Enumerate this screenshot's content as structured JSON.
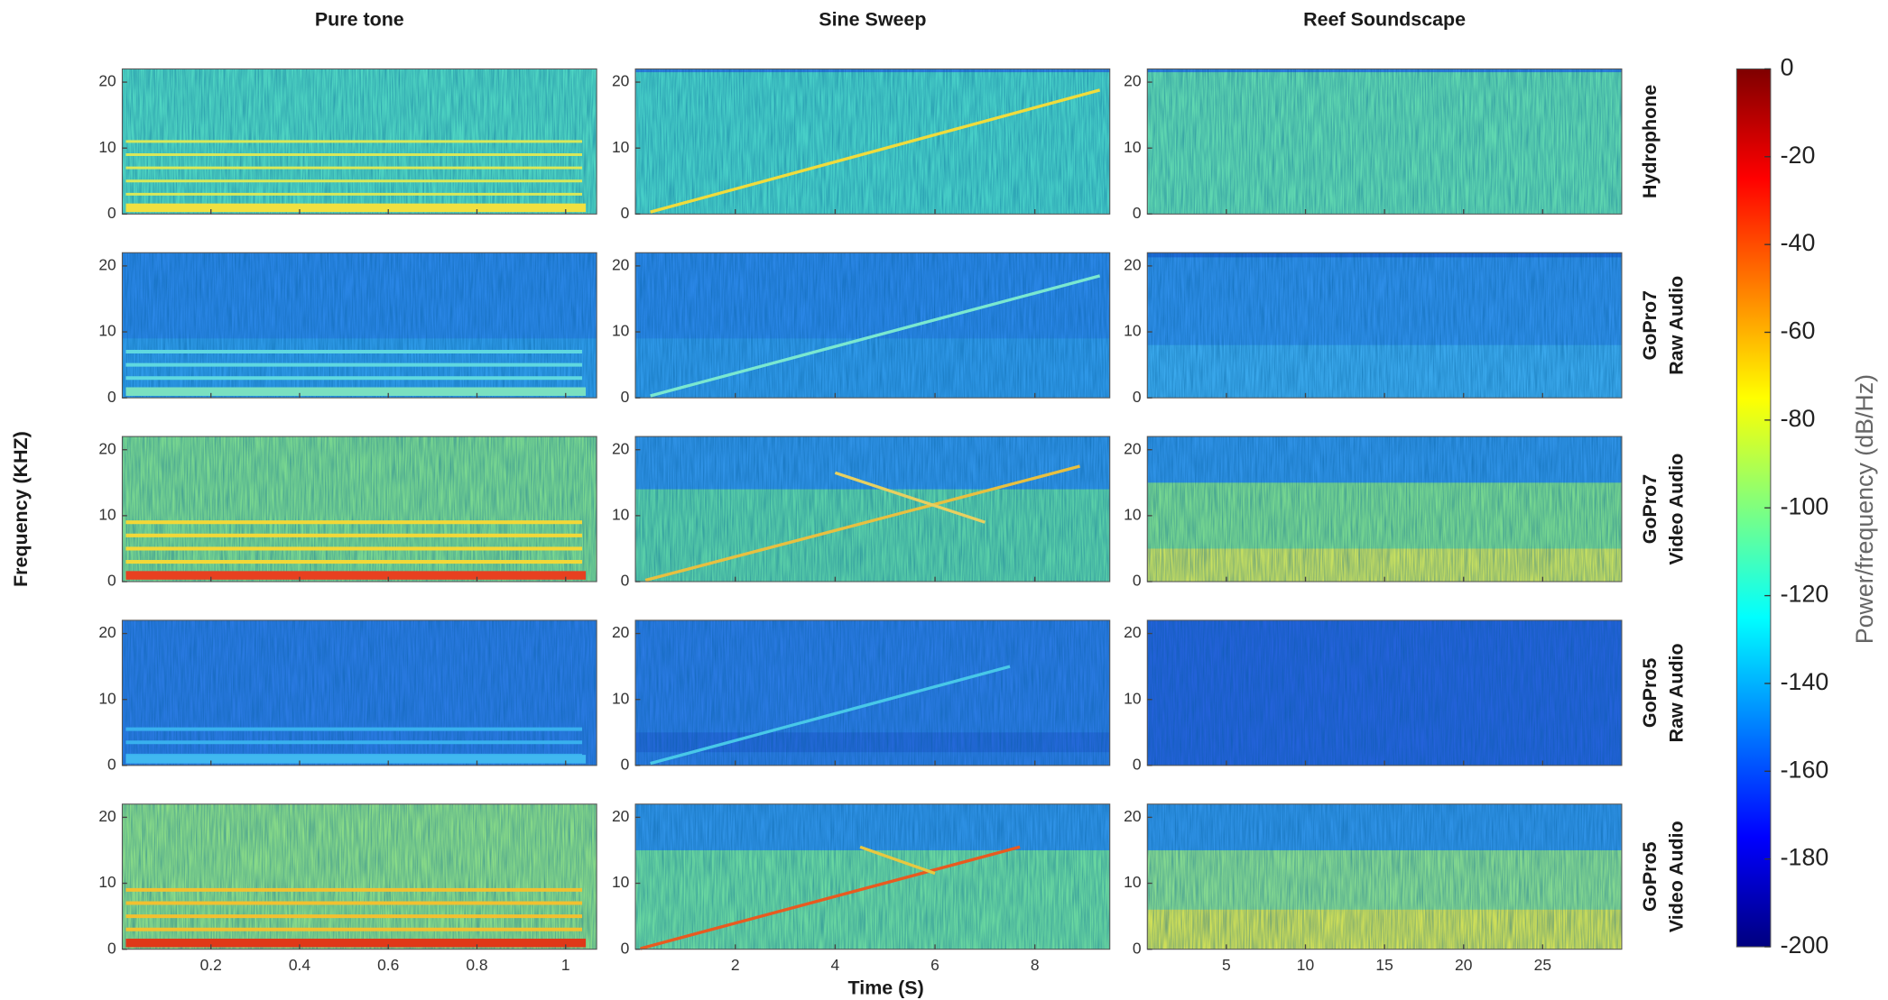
{
  "chart_data": {
    "type": "spectrogram",
    "columns": [
      {
        "title": "Pure tone",
        "xlim": [
          0,
          1.07
        ],
        "xticks": [
          0.2,
          0.4,
          0.6,
          0.8,
          1
        ]
      },
      {
        "title": "Sine Sweep",
        "xlim": [
          0,
          9.5
        ],
        "xticks": [
          2,
          4,
          6,
          8
        ]
      },
      {
        "title": "Reef Soundscape",
        "xlim": [
          0,
          30
        ],
        "xticks": [
          5,
          10,
          15,
          20,
          25
        ]
      }
    ],
    "rows": [
      [
        "Hydrophone"
      ],
      [
        "GoPro7",
        "Raw Audio"
      ],
      [
        "GoPro7",
        "Video Audio"
      ],
      [
        "GoPro5",
        "Raw Audio"
      ],
      [
        "GoPro5",
        "Video Audio"
      ]
    ],
    "ylabel": "Frequency (KHZ)",
    "xlabel": "Time (S)",
    "ylim": [
      0,
      22
    ],
    "yticks": [
      0,
      10,
      20
    ],
    "colorbar": {
      "label": "Power/frequency (dB/Hz)",
      "colormap": "jet",
      "lim": [
        -200,
        0
      ],
      "ticks": [
        0,
        -20,
        -40,
        -60,
        -80,
        -100,
        -120,
        -140,
        -160,
        -180,
        -200
      ]
    }
  }
}
